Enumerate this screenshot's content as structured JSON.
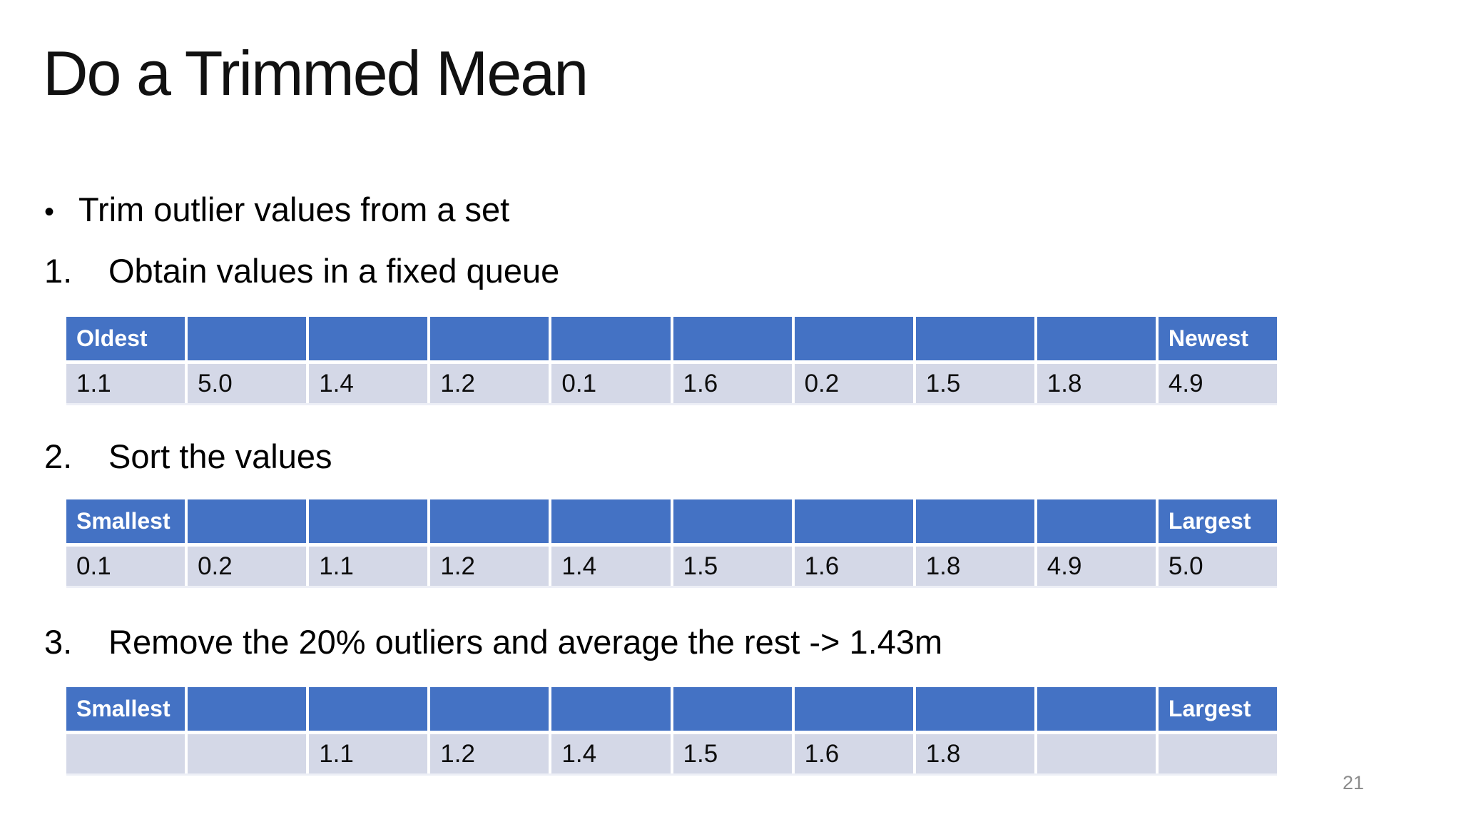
{
  "slide": {
    "title": "Do a Trimmed Mean",
    "bullet_marker": "•",
    "bullet": "Trim outlier values from a set",
    "steps": [
      {
        "number": "1.",
        "text": "Obtain values in a fixed queue"
      },
      {
        "number": "2.",
        "text": "Sort the values"
      },
      {
        "number": "3.",
        "text": "Remove the 20% outliers and average the rest -> 1.43m"
      }
    ],
    "tables": [
      {
        "name": "queue",
        "headers": [
          "Oldest",
          "",
          "",
          "",
          "",
          "",
          "",
          "",
          "",
          "Newest"
        ],
        "values": [
          "1.1",
          "5.0",
          "1.4",
          "1.2",
          "0.1",
          "1.6",
          "0.2",
          "1.5",
          "1.8",
          "4.9"
        ]
      },
      {
        "name": "sorted",
        "headers": [
          "Smallest",
          "",
          "",
          "",
          "",
          "",
          "",
          "",
          "",
          "Largest"
        ],
        "values": [
          "0.1",
          "0.2",
          "1.1",
          "1.2",
          "1.4",
          "1.5",
          "1.6",
          "1.8",
          "4.9",
          "5.0"
        ]
      },
      {
        "name": "trimmed",
        "headers": [
          "Smallest",
          "",
          "",
          "",
          "",
          "",
          "",
          "",
          "",
          "Largest"
        ],
        "values": [
          "",
          "",
          "1.1",
          "1.2",
          "1.4",
          "1.5",
          "1.6",
          "1.8",
          "",
          ""
        ]
      }
    ],
    "trimmed_mean_result": "1.43m",
    "page_number": "21",
    "colors": {
      "header_bg": "#4472C4",
      "row_bg": "#D4D8E7",
      "header_text": "#FFFFFF",
      "body_text": "#000000",
      "page_number": "#8C8C8C"
    }
  }
}
